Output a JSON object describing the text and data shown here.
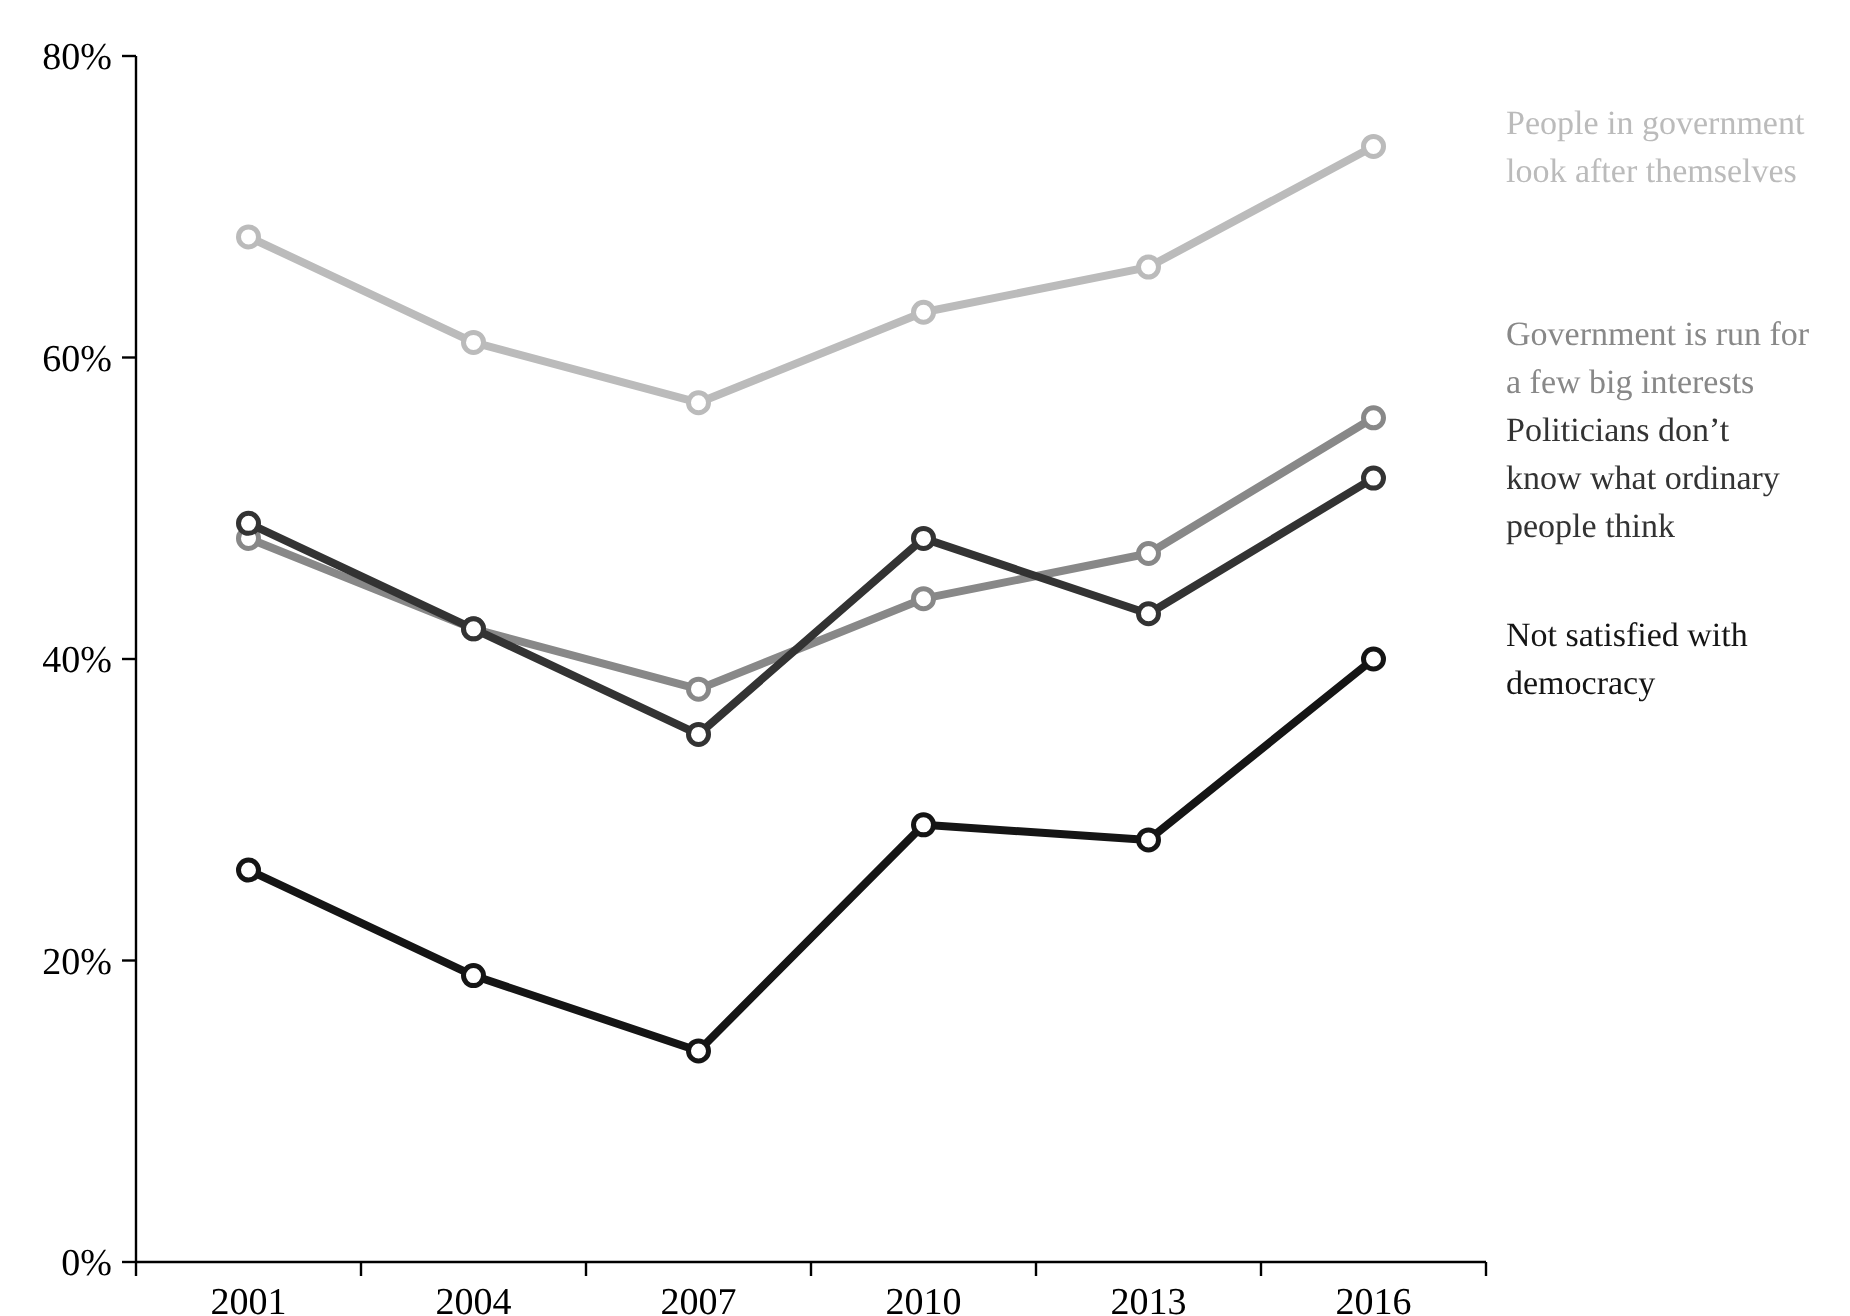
{
  "chart_data": {
    "type": "line",
    "categories": [
      "2001",
      "2004",
      "2007",
      "2010",
      "2013",
      "2016"
    ],
    "ylim": [
      0,
      80
    ],
    "yticks": [
      {
        "value": 0,
        "label": "0%"
      },
      {
        "value": 20,
        "label": "20%"
      },
      {
        "value": 40,
        "label": "40%"
      },
      {
        "value": 60,
        "label": "60%"
      },
      {
        "value": 80,
        "label": "80%"
      }
    ],
    "grid": false,
    "marker": "circle",
    "line_style": "solid",
    "series": [
      {
        "name": "People in government look after themselves",
        "color": "#bbbbbb",
        "values": [
          68,
          61,
          57,
          63,
          66,
          74
        ]
      },
      {
        "name": "Government is run for a few big interests",
        "color": "#888888",
        "values": [
          48,
          42,
          38,
          44,
          47,
          56
        ]
      },
      {
        "name": "Politicians don’t know what ordinary people think",
        "color": "#333333",
        "values": [
          49,
          42,
          35,
          48,
          43,
          52
        ]
      },
      {
        "name": "Not satisfied with democracy",
        "color": "#151515",
        "values": [
          26,
          19,
          14,
          29,
          28,
          40
        ]
      }
    ]
  }
}
